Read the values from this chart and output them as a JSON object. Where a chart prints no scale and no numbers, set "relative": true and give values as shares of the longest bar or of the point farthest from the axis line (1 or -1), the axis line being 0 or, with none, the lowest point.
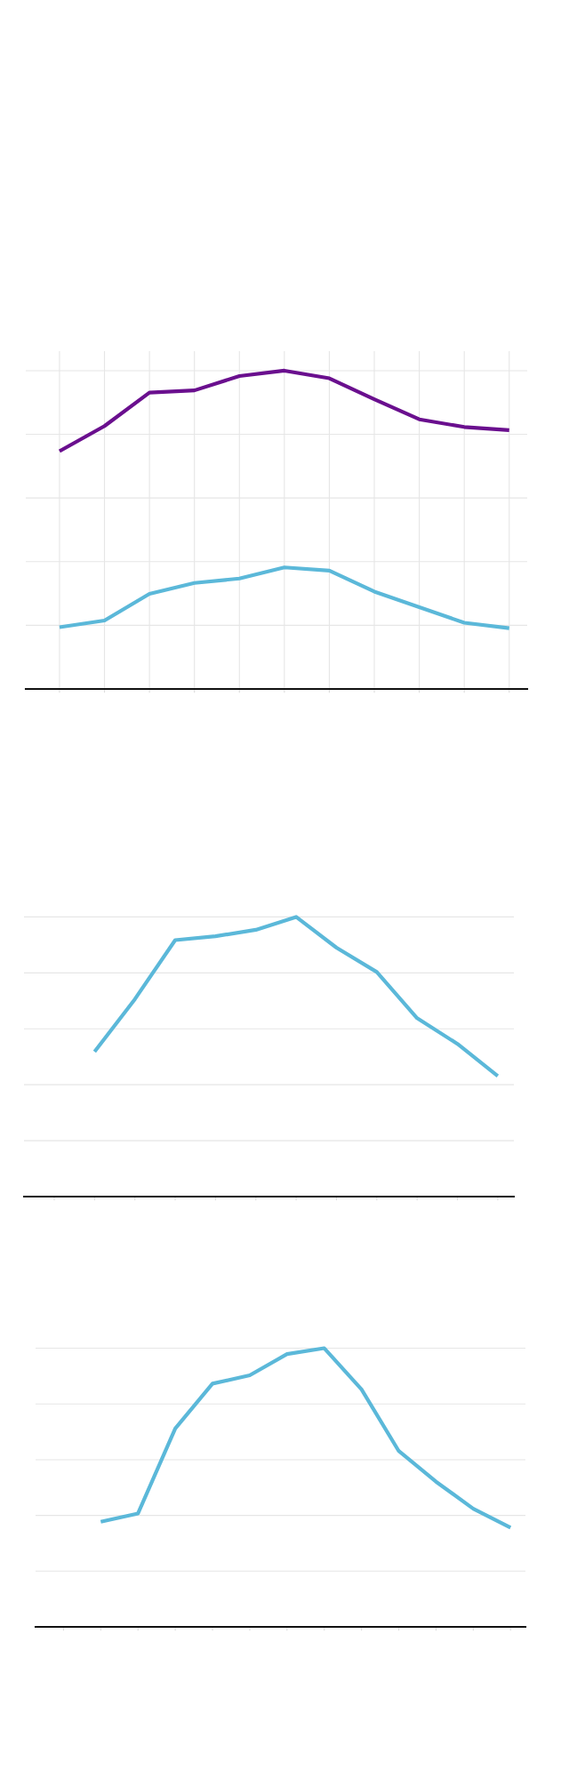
{
  "chart_data": [
    {
      "type": "line",
      "relative": true,
      "categories": [
        null,
        null,
        null,
        null,
        null,
        null,
        null,
        null,
        null,
        null,
        null
      ],
      "grid": true,
      "series": [
        {
          "color": "#6a0f8e",
          "values": [
            0.747,
            0.826,
            0.931,
            0.938,
            0.983,
            1,
            0.976,
            0.91,
            0.847,
            0.823,
            0.813
          ]
        },
        {
          "color": "#5bb8d9",
          "values": [
            0.194,
            0.215,
            0.299,
            0.333,
            0.347,
            0.382,
            0.372,
            0.306,
            0.257,
            0.208,
            0.191
          ]
        }
      ]
    },
    {
      "type": "line",
      "relative": true,
      "categories": [
        null,
        null,
        null,
        null,
        null,
        null,
        null,
        null,
        null,
        null,
        null,
        null
      ],
      "grid": "y",
      "series": [
        {
          "color": "#5bb8d9",
          "values": [
            null,
            0.518,
            0.706,
            0.917,
            0.931,
            0.954,
            1,
            0.89,
            0.803,
            0.638,
            0.546,
            0.431
          ]
        }
      ]
    },
    {
      "type": "line",
      "relative": true,
      "categories": [
        null,
        null,
        null,
        null,
        null,
        null,
        null,
        null,
        null,
        null,
        null,
        null,
        null
      ],
      "grid": "y",
      "series": [
        {
          "color": "#5bb8d9",
          "values": [
            null,
            0.377,
            0.407,
            0.712,
            0.873,
            0.903,
            0.979,
            1,
            0.852,
            0.631,
            0.521,
            0.424,
            0.356
          ]
        }
      ]
    }
  ]
}
